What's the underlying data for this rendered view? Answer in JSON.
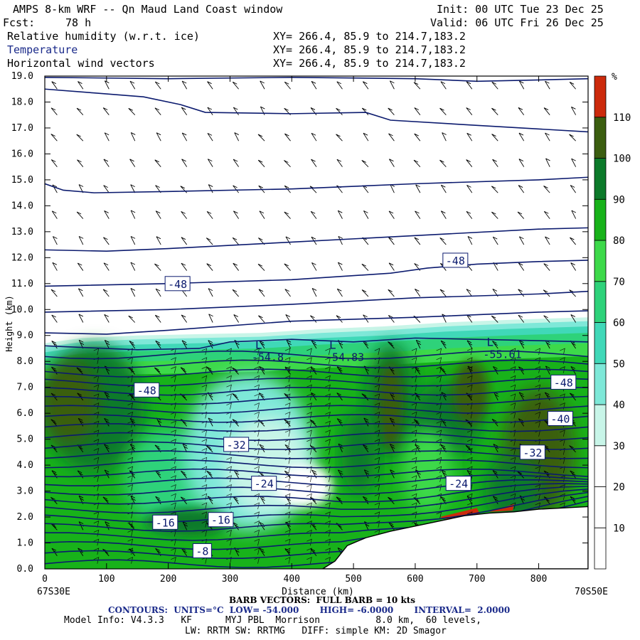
{
  "header": {
    "title": "AMPS 8-km WRF -- Qn Maud Land Coast window",
    "init": "Init: 00 UTC Tue 23 Dec 25",
    "fcst_label": "Fcst:",
    "fcst_value": "78 h",
    "valid": "Valid: 06 UTC Fri 26 Dec 25",
    "fields": [
      {
        "name": "Relative humidity (w.r.t. ice)",
        "xy": "XY= 266.4, 85.9 to 214.7,183.2"
      },
      {
        "name": "Temperature",
        "xy": "XY= 266.4, 85.9 to 214.7,183.2"
      },
      {
        "name": "Horizontal wind vectors",
        "xy": "XY= 266.4, 85.9 to 214.7,183.2"
      }
    ]
  },
  "colors": {
    "contour": "#0b1a6e",
    "terrain": "#ffffff",
    "barb": "#000000"
  },
  "chart_data": {
    "type": "heatmap",
    "xlabel": "Distance (km)",
    "ylabel": "Height (km)",
    "xlim": [
      0,
      880
    ],
    "ylim": [
      0,
      19
    ],
    "x_ticks": [
      0,
      100,
      200,
      300,
      400,
      500,
      600,
      700,
      800
    ],
    "y_ticks": [
      "0.0",
      "1.0",
      "2.0",
      "3.0",
      "4.0",
      "5.0",
      "6.0",
      "7.0",
      "8.0",
      "9.0",
      "10.0",
      "11.0",
      "12.0",
      "13.0",
      "14.0",
      "15.0",
      "16.0",
      "17.0",
      "18.0",
      "19.0"
    ],
    "x_start_label": "67S30E",
    "x_end_label": "70S50E",
    "colorbar": {
      "unit": "%",
      "ticks": [
        10,
        20,
        30,
        40,
        50,
        60,
        70,
        80,
        90,
        100,
        110
      ],
      "bins": [
        {
          "from": 0,
          "to": 10,
          "color": "#ffffff"
        },
        {
          "from": 10,
          "to": 20,
          "color": "#ffffff"
        },
        {
          "from": 20,
          "to": 30,
          "color": "#ffffff"
        },
        {
          "from": 30,
          "to": 40,
          "color": "#c8f5e8"
        },
        {
          "from": 40,
          "to": 50,
          "color": "#7ee8d8"
        },
        {
          "from": 50,
          "to": 60,
          "color": "#40d8b8"
        },
        {
          "from": 60,
          "to": 70,
          "color": "#2ed27a"
        },
        {
          "from": 70,
          "to": 80,
          "color": "#3dd94a"
        },
        {
          "from": 80,
          "to": 90,
          "color": "#18b21a"
        },
        {
          "from": 90,
          "to": 100,
          "color": "#0c7a2a"
        },
        {
          "from": 100,
          "to": 110,
          "color": "#3b5e10"
        },
        {
          "from": 110,
          "to": 120,
          "color": "#cc2a0c"
        }
      ]
    },
    "contour_labels": [
      {
        "text": "-48",
        "x": 215,
        "z": 11.0
      },
      {
        "text": "-48",
        "x": 665,
        "z": 11.9
      },
      {
        "text": "-48",
        "x": 165,
        "z": 6.9
      },
      {
        "text": "-48",
        "x": 840,
        "z": 7.2
      },
      {
        "text": "-40",
        "x": 835,
        "z": 5.8
      },
      {
        "text": "-32",
        "x": 310,
        "z": 4.8
      },
      {
        "text": "-32",
        "x": 790,
        "z": 4.5
      },
      {
        "text": "-24",
        "x": 355,
        "z": 3.3
      },
      {
        "text": "-24",
        "x": 670,
        "z": 3.3
      },
      {
        "text": "-16",
        "x": 195,
        "z": 1.8
      },
      {
        "text": "-16",
        "x": 285,
        "z": 1.9
      },
      {
        "text": "-8",
        "x": 255,
        "z": 0.7
      }
    ],
    "lows": [
      {
        "text": "L",
        "value": "-54.8",
        "x": 335,
        "z": 8.6
      },
      {
        "text": "L",
        "value": "-54.83",
        "x": 455,
        "z": 8.6
      },
      {
        "text": "L",
        "value": "-55.61",
        "x": 710,
        "z": 8.7
      }
    ],
    "terrain_profile": [
      {
        "x": 450,
        "z": 0.0
      },
      {
        "x": 470,
        "z": 0.3
      },
      {
        "x": 490,
        "z": 0.9
      },
      {
        "x": 520,
        "z": 1.2
      },
      {
        "x": 560,
        "z": 1.45
      },
      {
        "x": 600,
        "z": 1.65
      },
      {
        "x": 640,
        "z": 1.85
      },
      {
        "x": 680,
        "z": 2.05
      },
      {
        "x": 720,
        "z": 2.15
      },
      {
        "x": 760,
        "z": 2.2
      },
      {
        "x": 800,
        "z": 2.3
      },
      {
        "x": 880,
        "z": 2.4
      }
    ]
  },
  "footer": {
    "barb": "BARB VECTORS:  FULL BARB = 10 kts",
    "contours": "CONTOURS:  UNITS=°C  LOW= -54.000       HIGH= -6.0000       INTERVAL=  2.0000",
    "model1": "Model Info: V4.3.3   KF      MYJ PBL  Morrison          8.0 km,  60 levels,",
    "model2": "LW: RRTM SW: RRTMG   DIFF: simple KM: 2D Smagor"
  }
}
